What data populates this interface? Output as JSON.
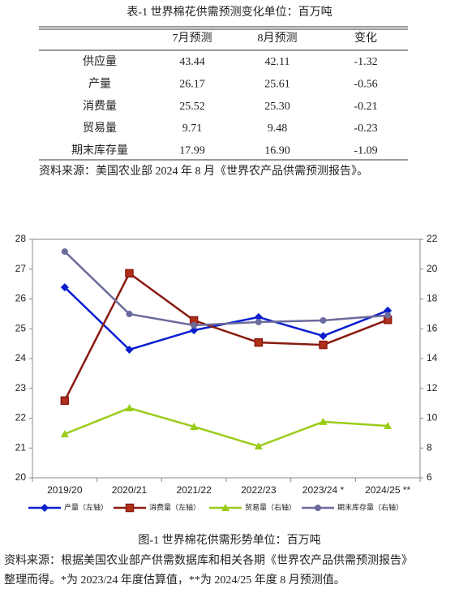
{
  "table": {
    "title": "表-1 世界棉花供需预测变化单位：百万吨",
    "header": [
      "7月预测",
      "8月预测",
      "变化"
    ],
    "rows": [
      [
        "供应量",
        "43.44",
        "42.11",
        "-1.32"
      ],
      [
        "产量",
        "26.17",
        "25.61",
        "-0.56"
      ],
      [
        "消费量",
        "25.52",
        "25.30",
        "-0.21"
      ],
      [
        "贸易量",
        "9.71",
        "9.48",
        "-0.23"
      ],
      [
        "期末库存量",
        "17.99",
        "16.90",
        "-1.09"
      ]
    ],
    "source": "资料来源：美国农业部 2024 年 8 月《世界农产品供需预测报告》。"
  },
  "chart_data": {
    "type": "line",
    "categories": [
      "2019/20",
      "2020/21",
      "2021/22",
      "2022/23",
      "2023/24 *",
      "2024/25 **"
    ],
    "ylim": [
      20,
      28
    ],
    "yticks": [
      20,
      21,
      22,
      23,
      24,
      25,
      26,
      27,
      28
    ],
    "y2lim": [
      6,
      22
    ],
    "y2ticks": [
      6,
      8,
      10,
      12,
      14,
      16,
      18,
      20,
      22
    ],
    "legend": "bottom",
    "series": [
      {
        "name": "产量（左轴）",
        "color": "#0a1ed0",
        "marker": "diamond",
        "values": [
          26.39,
          24.3,
          24.95,
          25.39,
          24.76,
          25.61
        ]
      },
      {
        "name": "消费量（左轴）",
        "color": "#8b1a10",
        "marker": "square",
        "values": [
          22.59,
          26.86,
          25.28,
          24.54,
          24.46,
          25.3
        ]
      },
      {
        "name": "贸易量（右轴）",
        "color": "#99cc1a",
        "marker": "triangle",
        "axis": "y2",
        "values": [
          8.94,
          10.68,
          9.43,
          8.12,
          9.76,
          9.48
        ]
      },
      {
        "name": "期末库存量（右轴）",
        "color": "#6b6b9c",
        "marker": "circle",
        "axis": "y2",
        "values": [
          21.18,
          16.99,
          16.23,
          16.45,
          16.56,
          16.9
        ]
      }
    ]
  },
  "figure": {
    "caption": "图-1 世界棉花供需形势单位：百万吨",
    "note_lines": [
      "资料来源：根据美国农业部产供需数据库和相关各期《世界农产品供需预测报告》",
      "整理而得。*为 2023/24 年度估算值，**为 2024/25 年度 8 月预测值。"
    ]
  }
}
